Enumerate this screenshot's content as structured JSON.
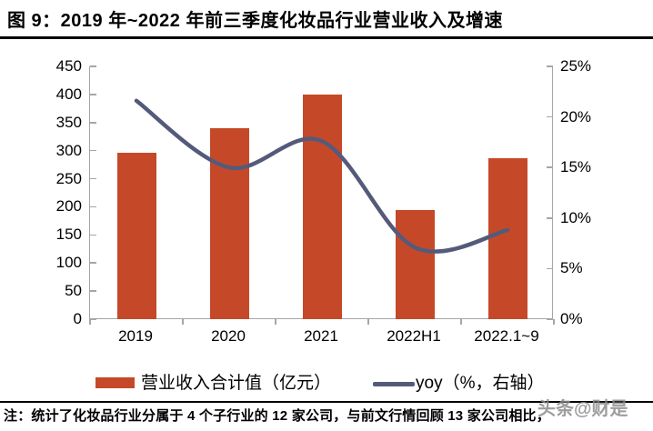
{
  "title": "图 9：2019 年~2022 年前三季度化妆品行业营业收入及增速",
  "note": "注：统计了化妆品行业分属于 4 个子行业的 12 家公司，与前文行情回顾 13 家公司相比，",
  "watermark": "头条@财是",
  "legend": {
    "bar_label": "营业收入合计值（亿元）",
    "line_label": "yoy（%，右轴）"
  },
  "colors": {
    "bar": "#C54928",
    "line": "#555A7B",
    "axis": "#A6A6A6",
    "text": "#000000",
    "watermark": "#8C8C8C"
  },
  "chart_data": {
    "type": "bar",
    "subtype": "combo-bar-line",
    "title": "2019 年~2022 年前三季度化妆品行业营业收入及增速",
    "categories": [
      "2019",
      "2020",
      "2021",
      "2022H1",
      "2022.1~9"
    ],
    "series": [
      {
        "name": "营业收入合计值（亿元）",
        "type": "bar",
        "axis": "left",
        "values": [
          297,
          340,
          400,
          195,
          287
        ],
        "color": "#C54928"
      },
      {
        "name": "yoy（%，右轴）",
        "type": "line",
        "axis": "right",
        "smooth": true,
        "values": [
          21.6,
          15.0,
          17.6,
          7.1,
          8.8
        ],
        "color": "#555A7B"
      }
    ],
    "left_axis": {
      "min": 0,
      "max": 450,
      "step": 50,
      "ticks": [
        450,
        400,
        350,
        300,
        250,
        200,
        150,
        100,
        50,
        0
      ]
    },
    "right_axis": {
      "min": 0,
      "max": 25,
      "step": 5,
      "tick_labels": [
        "25%",
        "20%",
        "15%",
        "10%",
        "5%",
        "0%"
      ],
      "tick_values": [
        25,
        20,
        15,
        10,
        5,
        0
      ]
    },
    "grid": false,
    "legend_position": "bottom",
    "xlabel": "",
    "ylabel": ""
  }
}
